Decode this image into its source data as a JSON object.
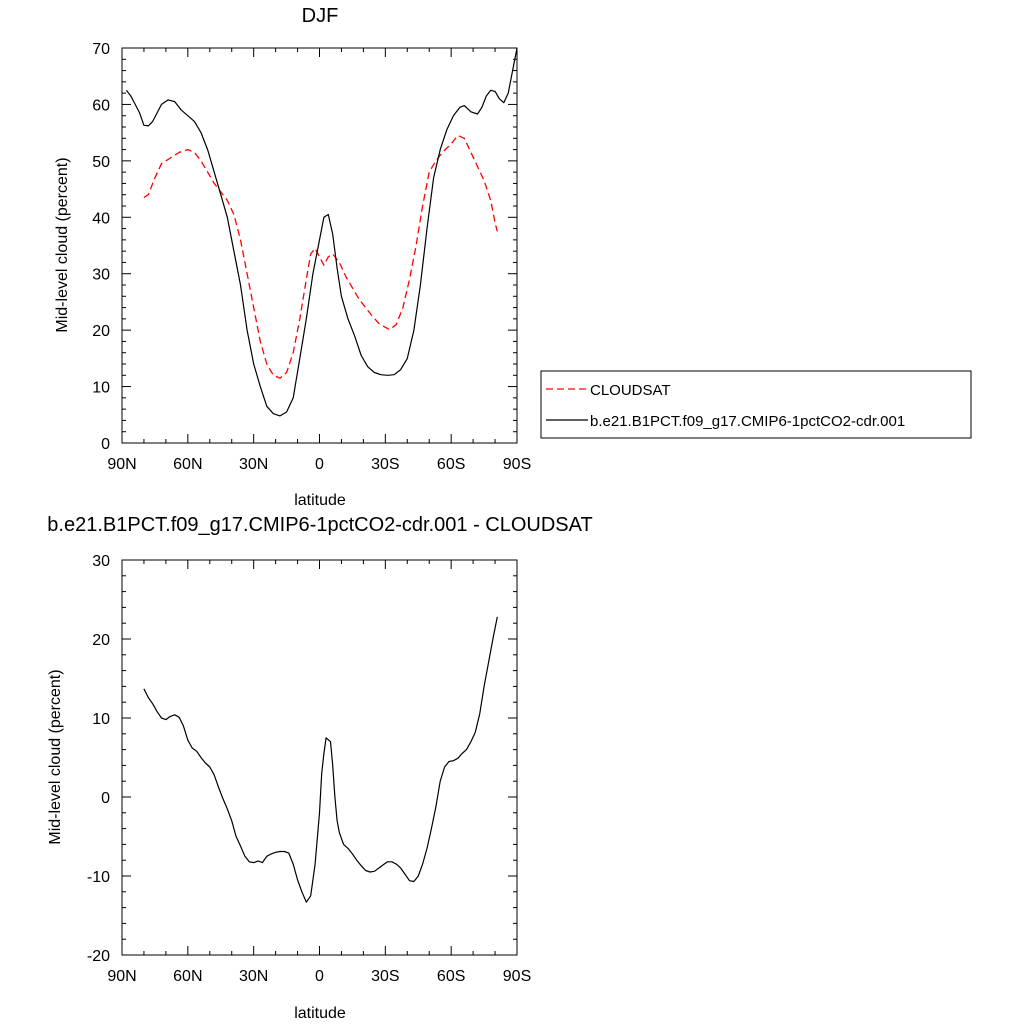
{
  "chart_data": [
    {
      "type": "line",
      "title": "DJF",
      "xlabel": "latitude",
      "ylabel": "Mid-level cloud (percent)",
      "xlim": [
        -90,
        90
      ],
      "ylim": [
        0,
        70
      ],
      "x_ticks": [
        {
          "value": -90,
          "label": "90N"
        },
        {
          "value": -60,
          "label": "60N"
        },
        {
          "value": -30,
          "label": "30N"
        },
        {
          "value": 0,
          "label": "0"
        },
        {
          "value": 30,
          "label": "30S"
        },
        {
          "value": 60,
          "label": "60S"
        },
        {
          "value": 90,
          "label": "90S"
        }
      ],
      "y_ticks": [
        0,
        10,
        20,
        30,
        40,
        50,
        60,
        70
      ],
      "grid": false,
      "legend_position": "right",
      "series": [
        {
          "name": "CLOUDSAT",
          "style": "dashed",
          "color": "#ff0000",
          "points": [
            [
              -80,
              43.5
            ],
            [
              -78,
              44
            ],
            [
              -75,
              47
            ],
            [
              -72,
              49.5
            ],
            [
              -68,
              50.5
            ],
            [
              -64,
              51.5
            ],
            [
              -60,
              52
            ],
            [
              -57,
              51.5
            ],
            [
              -54,
              50
            ],
            [
              -51,
              48
            ],
            [
              -48,
              46
            ],
            [
              -45,
              44.5
            ],
            [
              -42,
              43
            ],
            [
              -39,
              40.5
            ],
            [
              -36,
              36
            ],
            [
              -33,
              30
            ],
            [
              -30,
              24
            ],
            [
              -27,
              18
            ],
            [
              -24,
              14
            ],
            [
              -21,
              12
            ],
            [
              -18,
              11.5
            ],
            [
              -15,
              12.5
            ],
            [
              -12,
              16
            ],
            [
              -9,
              22
            ],
            [
              -6,
              29
            ],
            [
              -4,
              33.5
            ],
            [
              -2,
              34.5
            ],
            [
              0,
              33
            ],
            [
              2,
              31.5
            ],
            [
              4,
              33
            ],
            [
              6,
              33.5
            ],
            [
              9,
              32
            ],
            [
              12,
              29.5
            ],
            [
              15,
              27.5
            ],
            [
              18,
              25.5
            ],
            [
              21,
              24
            ],
            [
              24,
              22.5
            ],
            [
              27,
              21.2
            ],
            [
              30,
              20.5
            ],
            [
              32,
              20.1
            ],
            [
              35,
              21
            ],
            [
              38,
              24
            ],
            [
              41,
              29
            ],
            [
              44,
              35
            ],
            [
              47,
              42
            ],
            [
              50,
              48
            ],
            [
              53,
              50
            ],
            [
              56,
              51.5
            ],
            [
              60,
              53
            ],
            [
              63,
              54.5
            ],
            [
              66,
              54
            ],
            [
              69,
              51.5
            ],
            [
              72,
              49
            ],
            [
              75,
              46.5
            ],
            [
              78,
              43
            ],
            [
              80,
              39
            ],
            [
              81,
              37.5
            ]
          ]
        },
        {
          "name": "b.e21.B1PCT.f09_g17.CMIP6-1pctCO2-cdr.001",
          "style": "solid",
          "color": "#000000",
          "points": [
            [
              -88,
              62.5
            ],
            [
              -86,
              61.5
            ],
            [
              -84,
              60
            ],
            [
              -82,
              58.5
            ],
            [
              -80,
              56.3
            ],
            [
              -78,
              56.2
            ],
            [
              -76,
              57
            ],
            [
              -74,
              58.5
            ],
            [
              -72,
              60
            ],
            [
              -69,
              60.8
            ],
            [
              -66,
              60.5
            ],
            [
              -63,
              59
            ],
            [
              -60,
              58
            ],
            [
              -57,
              57
            ],
            [
              -54,
              55
            ],
            [
              -51,
              52
            ],
            [
              -48,
              48
            ],
            [
              -45,
              44
            ],
            [
              -42,
              40
            ],
            [
              -39,
              34
            ],
            [
              -36,
              28
            ],
            [
              -33,
              20
            ],
            [
              -30,
              14
            ],
            [
              -27,
              10
            ],
            [
              -24,
              6.5
            ],
            [
              -21,
              5.2
            ],
            [
              -18,
              4.8
            ],
            [
              -15,
              5.5
            ],
            [
              -12,
              8
            ],
            [
              -9,
              15
            ],
            [
              -6,
              22
            ],
            [
              -3,
              30
            ],
            [
              0,
              36
            ],
            [
              2,
              40
            ],
            [
              4,
              40.5
            ],
            [
              6,
              37
            ],
            [
              8,
              31
            ],
            [
              10,
              26
            ],
            [
              13,
              22
            ],
            [
              16,
              19
            ],
            [
              19,
              15.5
            ],
            [
              22,
              13.5
            ],
            [
              25,
              12.5
            ],
            [
              28,
              12.1
            ],
            [
              31,
              12
            ],
            [
              34,
              12.1
            ],
            [
              37,
              13
            ],
            [
              40,
              15
            ],
            [
              43,
              20
            ],
            [
              46,
              28
            ],
            [
              49,
              38
            ],
            [
              52,
              47
            ],
            [
              55,
              52
            ],
            [
              58,
              55.5
            ],
            [
              61,
              58
            ],
            [
              64,
              59.5
            ],
            [
              66,
              59.8
            ],
            [
              69,
              58.7
            ],
            [
              72,
              58.3
            ],
            [
              74,
              59.5
            ],
            [
              76,
              61.5
            ],
            [
              78,
              62.5
            ],
            [
              80,
              62.3
            ],
            [
              82,
              61
            ],
            [
              84,
              60.3
            ],
            [
              86,
              62
            ],
            [
              88,
              66
            ],
            [
              90,
              70
            ]
          ]
        }
      ]
    },
    {
      "type": "line",
      "title": "b.e21.B1PCT.f09_g17.CMIP6-1pctCO2-cdr.001 - CLOUDSAT",
      "xlabel": "latitude",
      "ylabel": "Mid-level cloud (percent)",
      "xlim": [
        -90,
        90
      ],
      "ylim": [
        -20,
        30
      ],
      "x_ticks": [
        {
          "value": -90,
          "label": "90N"
        },
        {
          "value": -60,
          "label": "60N"
        },
        {
          "value": -30,
          "label": "30N"
        },
        {
          "value": 0,
          "label": "0"
        },
        {
          "value": 30,
          "label": "30S"
        },
        {
          "value": 60,
          "label": "60S"
        },
        {
          "value": 90,
          "label": "90S"
        }
      ],
      "y_ticks": [
        -20,
        -10,
        0,
        10,
        20,
        30
      ],
      "grid": false,
      "series": [
        {
          "style": "solid",
          "color": "#000000",
          "points": [
            [
              -80,
              13.7
            ],
            [
              -78,
              12.6
            ],
            [
              -76,
              11.8
            ],
            [
              -74,
              10.8
            ],
            [
              -72,
              10
            ],
            [
              -70,
              9.8
            ],
            [
              -68,
              10.2
            ],
            [
              -66,
              10.4
            ],
            [
              -64,
              10.1
            ],
            [
              -62,
              9
            ],
            [
              -60,
              7.2
            ],
            [
              -58,
              6.2
            ],
            [
              -56,
              5.8
            ],
            [
              -54,
              5
            ],
            [
              -52,
              4.3
            ],
            [
              -50,
              3.8
            ],
            [
              -48,
              2.8
            ],
            [
              -46,
              1.2
            ],
            [
              -44,
              -0.2
            ],
            [
              -42,
              -1.5
            ],
            [
              -40,
              -3
            ],
            [
              -38,
              -5
            ],
            [
              -36,
              -6.2
            ],
            [
              -34,
              -7.5
            ],
            [
              -32,
              -8.2
            ],
            [
              -30,
              -8.3
            ],
            [
              -28,
              -8.1
            ],
            [
              -26,
              -8.3
            ],
            [
              -24,
              -7.5
            ],
            [
              -22,
              -7.2
            ],
            [
              -20,
              -7
            ],
            [
              -18,
              -6.9
            ],
            [
              -16,
              -6.9
            ],
            [
              -14,
              -7.1
            ],
            [
              -12,
              -8.5
            ],
            [
              -10,
              -10.5
            ],
            [
              -8,
              -12
            ],
            [
              -6,
              -13.3
            ],
            [
              -4,
              -12.5
            ],
            [
              -2,
              -8.5
            ],
            [
              0,
              -2
            ],
            [
              1,
              3
            ],
            [
              2,
              5.5
            ],
            [
              3,
              7.5
            ],
            [
              5,
              7
            ],
            [
              6,
              4
            ],
            [
              7,
              0
            ],
            [
              8,
              -3
            ],
            [
              9,
              -4.5
            ],
            [
              11,
              -6
            ],
            [
              13,
              -6.5
            ],
            [
              15,
              -7.2
            ],
            [
              17,
              -8
            ],
            [
              19,
              -8.7
            ],
            [
              21,
              -9.3
            ],
            [
              23,
              -9.5
            ],
            [
              25,
              -9.4
            ],
            [
              27,
              -9
            ],
            [
              29,
              -8.6
            ],
            [
              31,
              -8.2
            ],
            [
              33,
              -8.2
            ],
            [
              35,
              -8.5
            ],
            [
              37,
              -9
            ],
            [
              39,
              -9.8
            ],
            [
              41,
              -10.6
            ],
            [
              43,
              -10.7
            ],
            [
              45,
              -10
            ],
            [
              47,
              -8.5
            ],
            [
              49,
              -6.5
            ],
            [
              51,
              -4
            ],
            [
              53,
              -1.3
            ],
            [
              55,
              2
            ],
            [
              57,
              3.8
            ],
            [
              59,
              4.5
            ],
            [
              61,
              4.6
            ],
            [
              63,
              4.9
            ],
            [
              65,
              5.5
            ],
            [
              67,
              6
            ],
            [
              69,
              7
            ],
            [
              71,
              8.2
            ],
            [
              73,
              10.5
            ],
            [
              75,
              14
            ],
            [
              77,
              17
            ],
            [
              79,
              20
            ],
            [
              81,
              22.8
            ]
          ]
        }
      ]
    }
  ]
}
